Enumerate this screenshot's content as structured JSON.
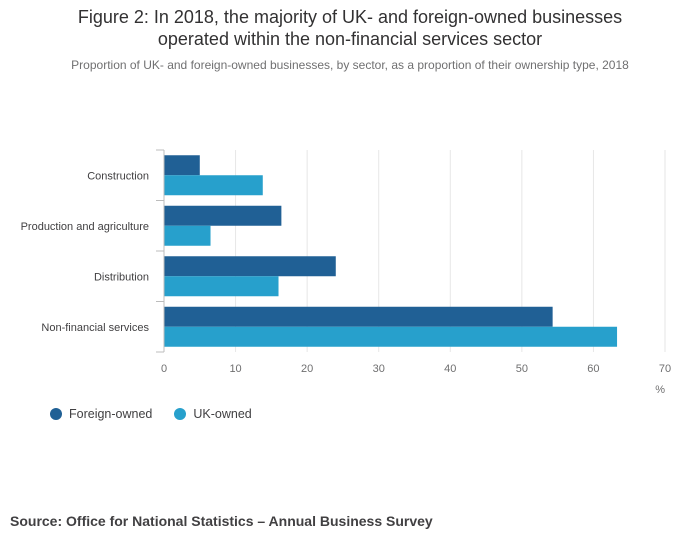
{
  "title_line1": "Figure 2: In 2018, the majority of UK- and foreign-owned businesses",
  "title_line2": "operated within the non-financial services sector",
  "subtitle": "Proportion of UK- and foreign-owned businesses, by sector, as a proportion of their ownership type, 2018",
  "source": "Source: Office for National Statistics – Annual Business Survey",
  "colors": {
    "foreign": "#206095",
    "uk": "#27a0cc",
    "grid": "#e6e6e6",
    "axis": "#bcbcbc",
    "tick_text": "#6f6f70"
  },
  "chart_data": {
    "type": "bar",
    "orientation": "horizontal",
    "categories": [
      "Construction",
      "Production and agriculture",
      "Distribution",
      "Non-financial services"
    ],
    "series": [
      {
        "name": "Foreign-owned",
        "values": [
          5,
          16.4,
          24,
          54.3
        ]
      },
      {
        "name": "UK-owned",
        "values": [
          13.8,
          6.5,
          16,
          63.3
        ]
      }
    ],
    "xlim": [
      0,
      70
    ],
    "xticks": [
      0,
      10,
      20,
      30,
      40,
      50,
      60,
      70
    ],
    "xunit": "%",
    "grid": true,
    "legend_position": "bottom-left"
  }
}
